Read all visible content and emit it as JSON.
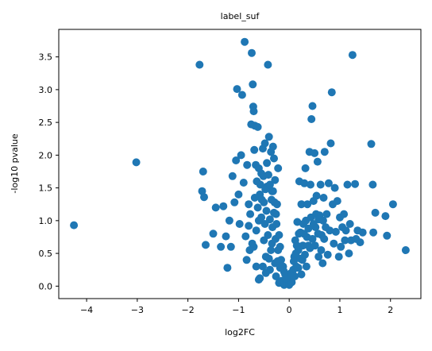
{
  "chart_data": {
    "type": "scatter",
    "title": "label_suf",
    "xlabel": "log2FC",
    "ylabel": "-log10 pvalue",
    "xlim": [
      -4.55,
      2.6
    ],
    "ylim": [
      -0.19,
      3.92
    ],
    "xticks": [
      -4,
      -3,
      -2,
      -1,
      0,
      1,
      2
    ],
    "yticks": [
      0.0,
      0.5,
      1.0,
      1.5,
      2.0,
      2.5,
      3.0,
      3.5
    ],
    "xtick_labels": [
      "−4",
      "−3",
      "−2",
      "−1",
      "0",
      "1",
      "2"
    ],
    "ytick_labels": [
      "0.0",
      "0.5",
      "1.0",
      "1.5",
      "2.0",
      "2.5",
      "3.0",
      "3.5"
    ],
    "grid": false,
    "marker_color": "#1f77b4",
    "series": [
      {
        "points": [
          [
            -4.25,
            0.93
          ],
          [
            -3.02,
            1.89
          ],
          [
            -1.77,
            3.38
          ],
          [
            -1.72,
            1.45
          ],
          [
            -1.7,
            1.75
          ],
          [
            -1.68,
            1.36
          ],
          [
            -1.65,
            0.63
          ],
          [
            -1.5,
            0.8
          ],
          [
            -1.45,
            1.2
          ],
          [
            -1.35,
            0.6
          ],
          [
            -1.3,
            1.22
          ],
          [
            -1.25,
            0.76
          ],
          [
            -1.22,
            0.28
          ],
          [
            -1.18,
            1.0
          ],
          [
            -1.15,
            0.6
          ],
          [
            -1.12,
            1.68
          ],
          [
            -1.08,
            1.28
          ],
          [
            -1.05,
            1.92
          ],
          [
            -1.03,
            3.01
          ],
          [
            -1.0,
            1.4
          ],
          [
            -0.98,
            0.95
          ],
          [
            -0.95,
            2.0
          ],
          [
            -0.93,
            2.92
          ],
          [
            -0.9,
            1.58
          ],
          [
            -0.88,
            3.73
          ],
          [
            -0.86,
            0.76
          ],
          [
            -0.83,
            1.85
          ],
          [
            -0.8,
            1.25
          ],
          [
            -0.78,
            0.55
          ],
          [
            -0.75,
            2.47
          ],
          [
            -0.74,
            3.56
          ],
          [
            -0.72,
            3.08
          ],
          [
            -0.71,
            2.74
          ],
          [
            -0.7,
            2.67
          ],
          [
            -0.69,
            2.08
          ],
          [
            -0.68,
            2.45
          ],
          [
            -0.66,
            1.85
          ],
          [
            -0.65,
            0.3
          ],
          [
            -0.62,
            2.43
          ],
          [
            -0.6,
            1.0
          ],
          [
            -0.58,
            0.12
          ],
          [
            -0.55,
            1.72
          ],
          [
            -0.52,
            2.1
          ],
          [
            -0.5,
            0.7
          ],
          [
            -0.48,
            2.18
          ],
          [
            -0.46,
            0.45
          ],
          [
            -0.44,
            1.52
          ],
          [
            -0.42,
            3.38
          ],
          [
            -0.4,
            2.28
          ],
          [
            -0.38,
            0.25
          ],
          [
            -0.36,
            2.05
          ],
          [
            -0.34,
            1.45
          ],
          [
            -0.32,
            2.13
          ],
          [
            -0.3,
            1.95
          ],
          [
            -0.28,
            1.62
          ],
          [
            -0.26,
            0.15
          ],
          [
            -0.24,
            1.25
          ],
          [
            -0.22,
            1.8
          ],
          [
            -0.2,
            0.05
          ],
          [
            -0.18,
            0.6
          ],
          [
            -0.15,
            0.08
          ],
          [
            -0.12,
            0.3
          ],
          [
            -0.1,
            0.02
          ],
          [
            -0.08,
            0.18
          ],
          [
            -0.05,
            0.05
          ],
          [
            -0.02,
            0.1
          ],
          [
            0.0,
            0.02
          ],
          [
            0.03,
            0.12
          ],
          [
            0.05,
            0.06
          ],
          [
            0.08,
            0.25
          ],
          [
            0.1,
            0.45
          ],
          [
            0.12,
            0.7
          ],
          [
            0.14,
            0.3
          ],
          [
            0.16,
            0.98
          ],
          [
            0.18,
            0.55
          ],
          [
            0.2,
            1.6
          ],
          [
            0.22,
            0.82
          ],
          [
            0.24,
            1.25
          ],
          [
            0.26,
            0.4
          ],
          [
            0.28,
            0.95
          ],
          [
            0.3,
            1.57
          ],
          [
            0.32,
            1.8
          ],
          [
            0.34,
            0.3
          ],
          [
            0.36,
            1.25
          ],
          [
            0.38,
            0.62
          ],
          [
            0.4,
            2.05
          ],
          [
            0.42,
            1.55
          ],
          [
            0.44,
            2.55
          ],
          [
            0.46,
            2.75
          ],
          [
            0.48,
            1.3
          ],
          [
            0.5,
            2.03
          ],
          [
            0.52,
            0.9
          ],
          [
            0.54,
            1.38
          ],
          [
            0.56,
            1.9
          ],
          [
            0.58,
            0.45
          ],
          [
            0.6,
            1.08
          ],
          [
            0.62,
            1.55
          ],
          [
            0.64,
            0.78
          ],
          [
            0.66,
            0.35
          ],
          [
            0.68,
            1.35
          ],
          [
            0.7,
            2.05
          ],
          [
            0.72,
            0.9
          ],
          [
            0.74,
            1.1
          ],
          [
            0.76,
            0.48
          ],
          [
            0.78,
            1.57
          ],
          [
            0.8,
            0.85
          ],
          [
            0.82,
            2.18
          ],
          [
            0.84,
            2.96
          ],
          [
            0.86,
            1.25
          ],
          [
            0.88,
            0.65
          ],
          [
            0.9,
            1.5
          ],
          [
            0.92,
            0.83
          ],
          [
            0.95,
            1.3
          ],
          [
            0.98,
            0.45
          ],
          [
            1.0,
            1.05
          ],
          [
            1.02,
            0.6
          ],
          [
            1.05,
            0.9
          ],
          [
            1.08,
            1.1
          ],
          [
            1.1,
            0.7
          ],
          [
            1.12,
            0.85
          ],
          [
            1.15,
            1.55
          ],
          [
            1.18,
            0.5
          ],
          [
            1.2,
            0.95
          ],
          [
            1.22,
            0.7
          ],
          [
            1.25,
            3.53
          ],
          [
            1.3,
            1.56
          ],
          [
            1.32,
            0.72
          ],
          [
            1.35,
            0.85
          ],
          [
            1.4,
            0.67
          ],
          [
            1.45,
            0.82
          ],
          [
            1.62,
            2.17
          ],
          [
            1.65,
            1.55
          ],
          [
            1.66,
            0.82
          ],
          [
            1.7,
            1.12
          ],
          [
            1.9,
            1.07
          ],
          [
            1.93,
            0.77
          ],
          [
            2.05,
            1.25
          ],
          [
            2.3,
            0.55
          ],
          [
            -0.6,
            0.1
          ],
          [
            -0.52,
            0.3
          ],
          [
            -0.46,
            0.2
          ],
          [
            -0.4,
            0.42
          ],
          [
            -0.34,
            0.65
          ],
          [
            -0.28,
            0.35
          ],
          [
            -0.22,
            0.55
          ],
          [
            -0.16,
            0.4
          ],
          [
            -0.1,
            0.22
          ],
          [
            -0.06,
            0.12
          ],
          [
            0.04,
            0.2
          ],
          [
            0.09,
            0.38
          ],
          [
            0.13,
            0.5
          ],
          [
            0.18,
            0.28
          ],
          [
            0.22,
            0.42
          ],
          [
            0.27,
            0.62
          ],
          [
            0.31,
            0.48
          ],
          [
            0.35,
            0.75
          ],
          [
            0.41,
            0.58
          ],
          [
            0.46,
            0.72
          ],
          [
            0.51,
            0.62
          ],
          [
            0.57,
            0.8
          ],
          [
            0.63,
            0.55
          ],
          [
            0.69,
            0.72
          ],
          [
            -0.7,
            0.6
          ],
          [
            -0.65,
            0.85
          ],
          [
            -0.62,
            1.2
          ],
          [
            -0.58,
            1.4
          ],
          [
            -0.55,
            1.05
          ],
          [
            -0.5,
            1.28
          ],
          [
            -0.48,
            0.95
          ],
          [
            -0.45,
            1.15
          ],
          [
            -0.42,
            0.78
          ],
          [
            -0.38,
            1.02
          ],
          [
            -0.36,
            0.55
          ],
          [
            -0.33,
            0.9
          ],
          [
            -0.3,
            1.12
          ],
          [
            -0.27,
            0.72
          ],
          [
            -0.25,
            0.95
          ],
          [
            -0.23,
            0.38
          ],
          [
            -0.2,
            0.78
          ],
          [
            -0.18,
            0.28
          ],
          [
            -0.84,
            0.4
          ],
          [
            -0.8,
            0.92
          ],
          [
            -0.77,
            1.1
          ],
          [
            -0.73,
            0.65
          ],
          [
            -0.68,
            1.35
          ],
          [
            -0.64,
            1.6
          ],
          [
            -0.6,
            1.8
          ],
          [
            -0.57,
            1.55
          ],
          [
            -0.54,
            1.32
          ],
          [
            -0.51,
            1.68
          ],
          [
            -0.47,
            1.48
          ],
          [
            -0.44,
            1.88
          ],
          [
            -0.41,
            1.7
          ],
          [
            -0.38,
            1.55
          ],
          [
            -0.35,
            1.32
          ],
          [
            -0.32,
            1.45
          ],
          [
            -0.29,
            1.28
          ],
          [
            -0.26,
            1.1
          ],
          [
            0.11,
            0.15
          ],
          [
            0.15,
            0.62
          ],
          [
            0.19,
            0.8
          ],
          [
            0.24,
            0.18
          ],
          [
            0.29,
            0.8
          ],
          [
            0.33,
            1.0
          ],
          [
            0.38,
            0.88
          ],
          [
            0.43,
            1.05
          ],
          [
            0.48,
            0.95
          ],
          [
            0.53,
            1.1
          ],
          [
            0.58,
            1.02
          ],
          [
            0.67,
            1.0
          ]
        ]
      }
    ]
  }
}
